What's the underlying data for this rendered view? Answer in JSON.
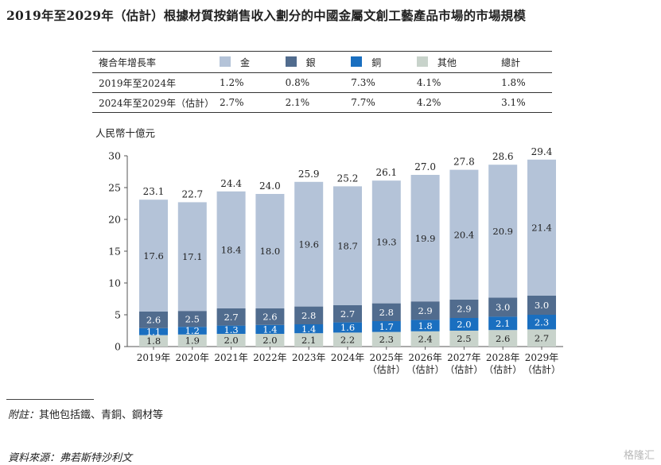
{
  "title": "2019年至2029年（估計）根據材質按銷售收入劃分的中國金屬文創工藝產品市場的市場規模",
  "cagr_table": {
    "header_label": "複合年增長率",
    "columns": [
      {
        "label": "金",
        "color": "#b4c3d8"
      },
      {
        "label": "銀",
        "color": "#516c8e"
      },
      {
        "label": "銅",
        "color": "#1a6fc0"
      },
      {
        "label": "其他",
        "color": "#c8d3cb"
      },
      {
        "label": "總計",
        "color": ""
      }
    ],
    "rows": [
      {
        "period": "2019年至2024年",
        "values": [
          "1.2%",
          "0.8%",
          "7.3%",
          "4.1%",
          "1.8%"
        ]
      },
      {
        "period": "2024年至2029年（估計）",
        "values": [
          "2.7%",
          "2.1%",
          "7.7%",
          "4.2%",
          "3.1%"
        ]
      }
    ]
  },
  "chart_data": {
    "type": "bar",
    "stacked": true,
    "ylabel": "人民幣十億元",
    "ylim": [
      0,
      30
    ],
    "yticks": [
      0,
      5,
      10,
      15,
      20,
      25,
      30
    ],
    "categories": [
      "2019年",
      "2020年",
      "2021年",
      "2022年",
      "2023年",
      "2024年",
      "2025年",
      "2026年",
      "2027年",
      "2028年",
      "2029年"
    ],
    "category_sublabels": [
      "",
      "",
      "",
      "",
      "",
      "",
      "（估計）",
      "（估計）",
      "（估計）",
      "（估計）",
      "（估計）"
    ],
    "series": [
      {
        "name": "其他",
        "color": "#c8d3cb",
        "values": [
          1.8,
          1.9,
          2.0,
          2.0,
          2.1,
          2.2,
          2.3,
          2.4,
          2.5,
          2.6,
          2.7
        ]
      },
      {
        "name": "銅",
        "color": "#1a6fc0",
        "values": [
          1.1,
          1.2,
          1.3,
          1.4,
          1.4,
          1.6,
          1.7,
          1.8,
          2.0,
          2.1,
          2.3
        ]
      },
      {
        "name": "銀",
        "color": "#516c8e",
        "values": [
          2.6,
          2.5,
          2.7,
          2.6,
          2.8,
          2.7,
          2.8,
          2.9,
          2.9,
          3.0,
          3.0
        ]
      },
      {
        "name": "金",
        "color": "#b4c3d8",
        "values": [
          17.6,
          17.1,
          18.4,
          18.0,
          19.6,
          18.7,
          19.3,
          19.9,
          20.4,
          20.9,
          21.4
        ]
      }
    ],
    "totals": [
      23.1,
      22.7,
      24.4,
      24.0,
      25.9,
      25.2,
      26.1,
      27.0,
      27.8,
      28.6,
      29.4
    ]
  },
  "footnote": {
    "label": "附註：",
    "text": "其他包括鐵、青銅、鋼材等"
  },
  "source": "資料來源：弗若斯特沙利文",
  "watermark": "格隆汇"
}
